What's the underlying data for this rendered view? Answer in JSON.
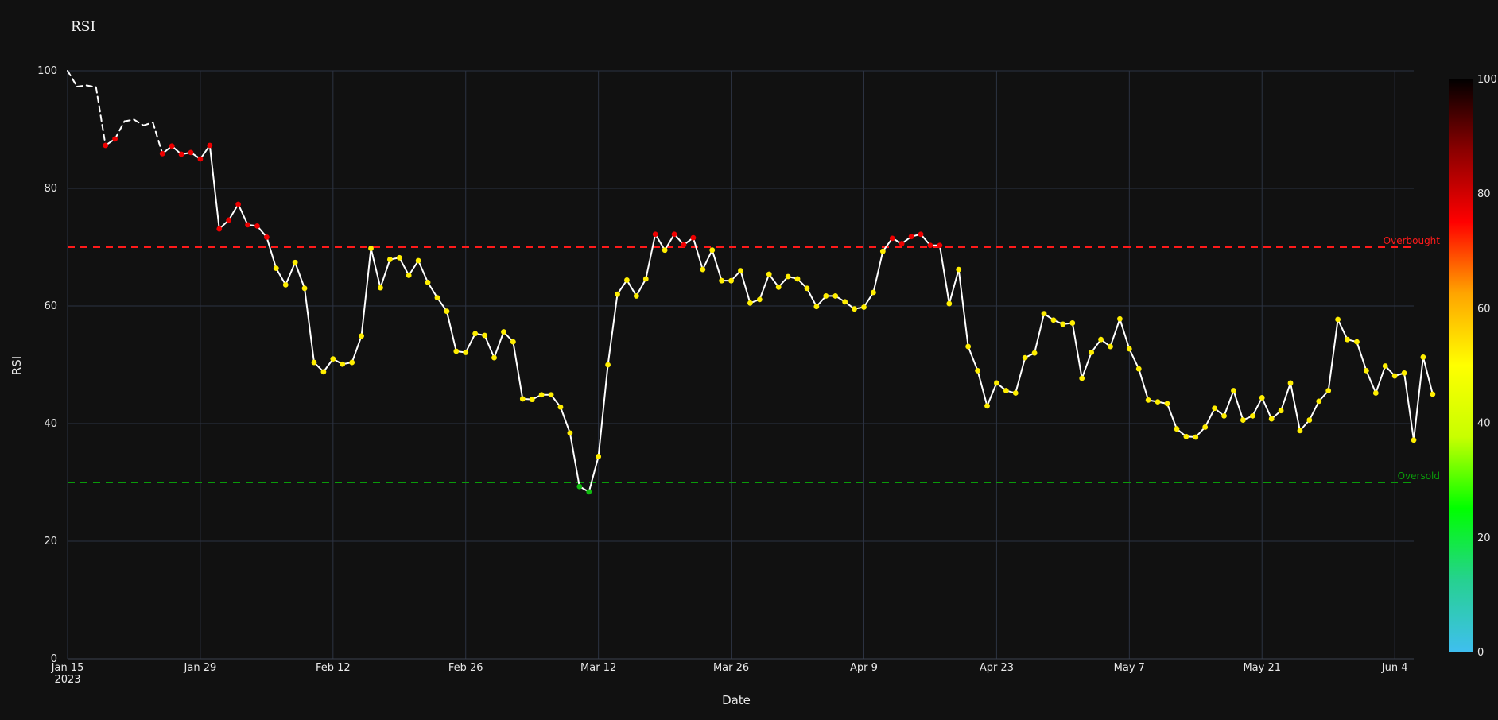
{
  "chart_data": {
    "type": "line",
    "title": "RSI",
    "xlabel": "Date",
    "ylabel": "RSI",
    "ylim": [
      0,
      100
    ],
    "xlim": [
      "2023-01-15",
      "2023-06-06"
    ],
    "yticks": [
      0,
      20,
      40,
      60,
      80,
      100
    ],
    "xticks": [
      {
        "date": "2023-01-15",
        "label": "Jan 15",
        "sublabel": "2023"
      },
      {
        "date": "2023-01-29",
        "label": "Jan 29"
      },
      {
        "date": "2023-02-12",
        "label": "Feb 12"
      },
      {
        "date": "2023-02-26",
        "label": "Feb 26"
      },
      {
        "date": "2023-03-12",
        "label": "Mar 12"
      },
      {
        "date": "2023-03-26",
        "label": "Mar 26"
      },
      {
        "date": "2023-04-09",
        "label": "Apr 9"
      },
      {
        "date": "2023-04-23",
        "label": "Apr 23"
      },
      {
        "date": "2023-05-07",
        "label": "May 7"
      },
      {
        "date": "2023-05-21",
        "label": "May 21"
      },
      {
        "date": "2023-06-04",
        "label": "Jun 4"
      }
    ],
    "grid": true,
    "line_color": "#ffffff",
    "thresholds": [
      {
        "label": "Overbought",
        "value": 70,
        "color": "#ff1a1a"
      },
      {
        "label": "Oversold",
        "value": 30,
        "color": "#0a9a0a"
      }
    ],
    "colorbar": {
      "range": [
        0,
        100
      ],
      "ticks": [
        0,
        20,
        40,
        60,
        80,
        100
      ],
      "colors": [
        "#3fbfef",
        "#26d190",
        "#00ff00",
        "#c8ff00",
        "#ffff00",
        "#ffa500",
        "#ff0000",
        "#8b0000",
        "#000000"
      ],
      "marker_rule": "markers shown only where value <= 90; red above 70, green below 30, yellow otherwise"
    },
    "series": [
      {
        "start_date": "2023-01-15",
        "values": [
          100,
          97.3,
          97.5,
          97.2,
          87.3,
          88.4,
          91.4,
          91.7,
          90.7,
          91.2,
          85.9,
          87.2,
          85.8,
          86.1,
          85.0,
          87.3,
          73.1,
          74.6,
          77.3,
          73.8,
          73.6,
          71.7,
          66.4,
          63.6,
          67.4,
          63.0,
          50.4,
          48.8,
          51.0,
          50.1,
          50.4,
          54.9,
          69.8,
          63.1,
          67.9,
          68.2,
          65.2,
          67.7,
          64.0,
          61.4,
          59.1,
          52.3,
          52.1,
          55.3,
          55.0,
          51.2,
          55.6,
          53.9,
          44.2,
          44.1,
          44.9,
          44.9,
          42.8,
          38.4,
          29.3,
          28.4,
          34.4,
          50.0,
          62.0,
          64.4,
          61.7,
          64.6,
          72.2,
          69.5,
          72.2,
          70.4,
          71.6,
          66.2,
          69.5,
          64.3,
          64.3,
          66.0,
          60.5,
          61.1,
          65.4,
          63.2,
          65.0,
          64.6,
          63.0,
          59.9,
          61.7,
          61.7,
          60.7,
          59.5,
          59.8,
          62.3,
          69.3,
          71.5,
          70.6,
          71.8,
          72.2,
          70.3,
          70.3,
          60.4,
          66.2,
          53.1,
          49.0,
          43.0,
          46.9,
          45.6,
          45.2,
          51.2,
          52.0,
          58.7,
          57.6,
          56.9,
          57.1,
          47.7,
          52.1,
          54.3,
          53.1,
          57.8,
          52.7,
          49.3,
          44.0,
          43.7,
          43.4,
          39.1,
          37.8,
          37.7,
          39.4,
          42.6,
          41.3,
          45.6,
          40.6,
          41.3,
          44.4,
          40.8,
          42.2,
          46.9,
          38.8,
          40.6,
          43.8,
          45.6,
          57.7,
          54.3,
          53.9,
          49.0,
          45.2,
          49.8,
          48.1,
          48.6,
          37.2,
          51.3,
          45.0
        ]
      }
    ]
  }
}
